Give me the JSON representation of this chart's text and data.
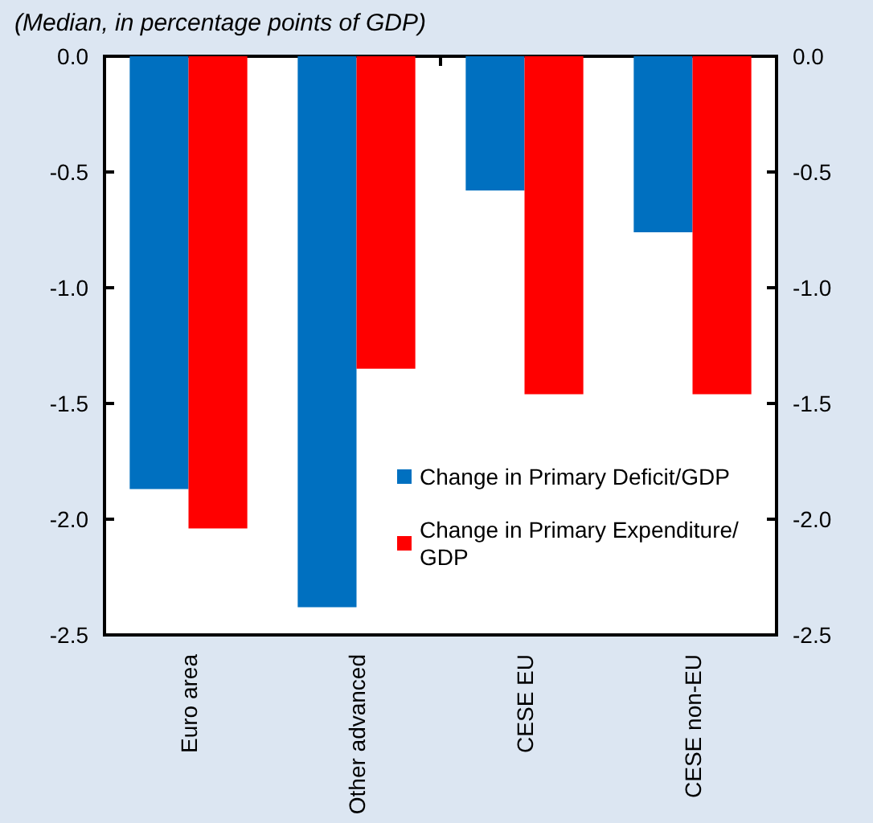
{
  "chart_data": {
    "type": "bar",
    "subtitle": "(Median, in percentage points of GDP)",
    "categories": [
      "Euro area",
      "Other advanced",
      "CESE EU",
      "CESE non-EU"
    ],
    "series": [
      {
        "name": "Change in Primary Deficit/GDP",
        "color": "#0070c0",
        "values": [
          -1.87,
          -2.38,
          -0.58,
          -0.76
        ]
      },
      {
        "name": "Change in Primary Expenditure/GDP",
        "color": "#ff0000",
        "values": [
          -2.04,
          -1.35,
          -1.46,
          -1.46
        ]
      }
    ],
    "ylim": [
      -2.5,
      0
    ],
    "yticks": [
      {
        "value": 0,
        "label": "0.0"
      },
      {
        "value": -0.5,
        "label": "-0.5"
      },
      {
        "value": -1,
        "label": "-1.0"
      },
      {
        "value": -1.5,
        "label": "-1.5"
      },
      {
        "value": -2,
        "label": "-2.0"
      },
      {
        "value": -2.5,
        "label": "-2.5"
      }
    ],
    "y2lim": [
      -2.5,
      0
    ],
    "y2ticks": [
      {
        "value": 0,
        "label": "0.0"
      },
      {
        "value": -0.5,
        "label": "-0.5"
      },
      {
        "value": -1,
        "label": "-1.0"
      },
      {
        "value": -1.5,
        "label": "-1.5"
      },
      {
        "value": -2,
        "label": "-2.0"
      },
      {
        "value": -2.5,
        "label": "-2.5"
      }
    ],
    "grid": false,
    "legend": "bottom right"
  }
}
